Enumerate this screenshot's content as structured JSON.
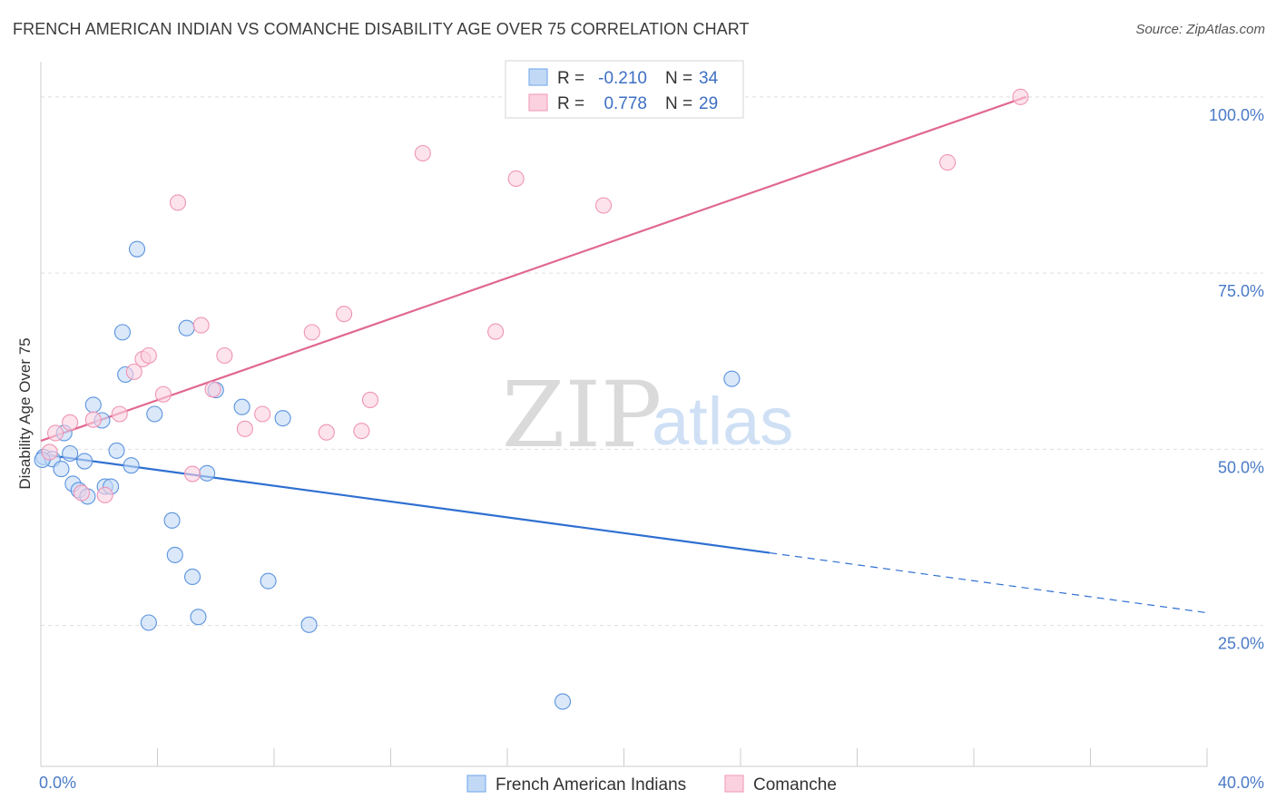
{
  "title": "FRENCH AMERICAN INDIAN VS COMANCHE DISABILITY AGE OVER 75 CORRELATION CHART",
  "source": "Source: ZipAtlas.com",
  "watermark": {
    "zip": "ZIP",
    "atlas": "atlas"
  },
  "legend": {
    "r_label": "R =",
    "n_label": "N =",
    "rows": [
      {
        "r": "-0.210",
        "n": "34",
        "color": "#7eb0ec",
        "fill": "#c2d9f6"
      },
      {
        "r": "0.778",
        "n": "29",
        "color": "#f2a3bf",
        "fill": "#fbd1df"
      }
    ]
  },
  "chart_data": {
    "type": "scatter",
    "title": "FRENCH AMERICAN INDIAN VS COMANCHE DISABILITY AGE OVER 75 CORRELATION CHART",
    "xlabel": "",
    "ylabel": "Disability Age Over 75",
    "xlim": [
      0,
      40
    ],
    "ylim": [
      5,
      105
    ],
    "x_tick_labels": [
      "0.0%",
      "40.0%"
    ],
    "y_ticks": [
      25,
      50,
      75,
      100
    ],
    "y_tick_labels": [
      "25.0%",
      "50.0%",
      "75.0%",
      "100.0%"
    ],
    "grid": true,
    "legend_position": "top-center",
    "series": [
      {
        "name": "French American Indians",
        "color": "#5b93de",
        "fill": "#c2d9f6",
        "trend": {
          "x": [
            0,
            25
          ],
          "y": [
            49.3,
            35.3
          ],
          "dashed_to": [
            40,
            26.8
          ],
          "color": "#2f6fd1"
        },
        "points": [
          [
            0.1,
            48.9
          ],
          [
            0.4,
            48.6
          ],
          [
            0.7,
            47.2
          ],
          [
            0.8,
            52.3
          ],
          [
            1.0,
            49.4
          ],
          [
            1.1,
            45.1
          ],
          [
            1.3,
            44.2
          ],
          [
            1.5,
            48.3
          ],
          [
            1.6,
            43.3
          ],
          [
            1.8,
            56.3
          ],
          [
            2.1,
            54.1
          ],
          [
            2.2,
            44.7
          ],
          [
            2.4,
            44.7
          ],
          [
            2.6,
            49.8
          ],
          [
            2.8,
            66.6
          ],
          [
            2.9,
            60.6
          ],
          [
            3.1,
            47.7
          ],
          [
            3.3,
            78.4
          ],
          [
            3.7,
            25.4
          ],
          [
            3.9,
            55.0
          ],
          [
            4.5,
            39.9
          ],
          [
            4.6,
            35.0
          ],
          [
            5.0,
            67.2
          ],
          [
            5.2,
            31.9
          ],
          [
            5.4,
            26.2
          ],
          [
            5.7,
            46.6
          ],
          [
            6.0,
            58.4
          ],
          [
            6.9,
            56.0
          ],
          [
            7.8,
            31.3
          ],
          [
            8.3,
            54.4
          ],
          [
            9.2,
            25.1
          ],
          [
            17.9,
            14.2
          ],
          [
            23.7,
            60.0
          ],
          [
            0.05,
            48.5
          ]
        ]
      },
      {
        "name": "Comanche",
        "color": "#ef95b4",
        "fill": "#fbd1df",
        "trend": {
          "x": [
            0,
            33.8
          ],
          "y": [
            51.2,
            100
          ],
          "color": "#e0688f"
        },
        "points": [
          [
            0.3,
            49.6
          ],
          [
            0.5,
            52.3
          ],
          [
            1.0,
            53.8
          ],
          [
            1.4,
            43.8
          ],
          [
            1.8,
            54.2
          ],
          [
            2.2,
            43.5
          ],
          [
            2.7,
            55.0
          ],
          [
            3.2,
            61.0
          ],
          [
            3.5,
            62.8
          ],
          [
            3.7,
            63.3
          ],
          [
            4.2,
            57.8
          ],
          [
            4.7,
            85.0
          ],
          [
            5.2,
            46.5
          ],
          [
            5.5,
            67.6
          ],
          [
            5.9,
            58.5
          ],
          [
            6.3,
            63.3
          ],
          [
            7.0,
            52.9
          ],
          [
            7.6,
            55.0
          ],
          [
            9.3,
            66.6
          ],
          [
            9.8,
            52.4
          ],
          [
            10.4,
            69.2
          ],
          [
            11.0,
            52.6
          ],
          [
            11.3,
            57.0
          ],
          [
            13.1,
            92.0
          ],
          [
            15.6,
            66.7
          ],
          [
            16.3,
            88.4
          ],
          [
            19.3,
            84.6
          ],
          [
            31.1,
            90.7
          ],
          [
            33.6,
            100.0
          ]
        ]
      }
    ]
  }
}
